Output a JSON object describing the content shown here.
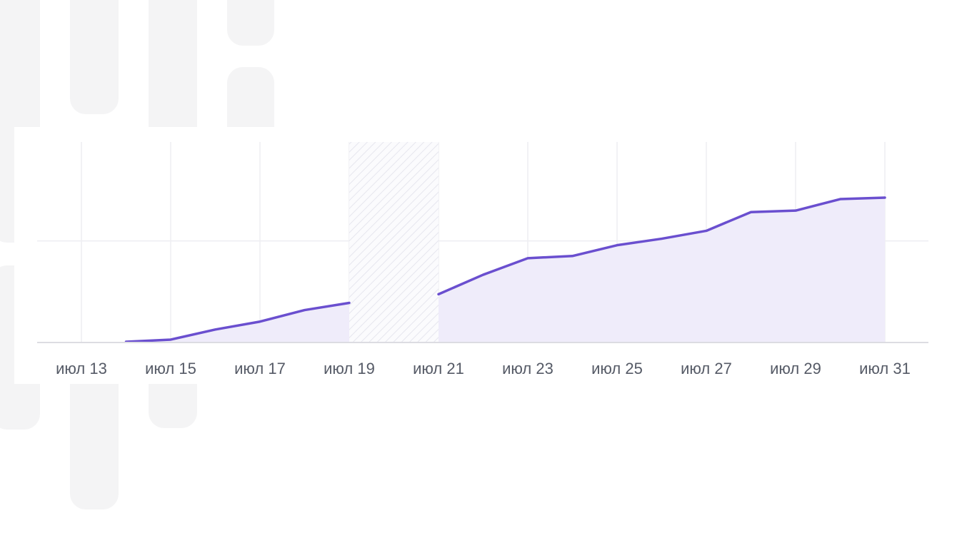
{
  "chart_data": {
    "type": "area",
    "title": "",
    "xlabel": "",
    "ylabel": "",
    "x_tick_labels": [
      "июл 13",
      "июл 15",
      "июл 17",
      "июл 19",
      "июл 21",
      "июл 23",
      "июл 25",
      "июл 27",
      "июл 29",
      "июл 31"
    ],
    "x_range": [
      "июл 13",
      "июл 31"
    ],
    "y_range": [
      0,
      1.0
    ],
    "grid": true,
    "highlighted_range": [
      "июл 19",
      "июл 21"
    ],
    "series": [
      {
        "color": "#6a4fcf",
        "fill_color": "#efecfa",
        "points": [
          {
            "x": "июл 14",
            "y": 0.0
          },
          {
            "x": "июл 15",
            "y": 0.015
          },
          {
            "x": "июл 16",
            "y": 0.085
          },
          {
            "x": "июл 17",
            "y": 0.14
          },
          {
            "x": "июл 18",
            "y": 0.22
          },
          {
            "x": "июл 19",
            "y": 0.27
          },
          {
            "x": "июл 21",
            "y": 0.33
          },
          {
            "x": "июл 22",
            "y": 0.465
          },
          {
            "x": "июл 23",
            "y": 0.58
          },
          {
            "x": "июл 24",
            "y": 0.595
          },
          {
            "x": "июл 25",
            "y": 0.67
          },
          {
            "x": "июл 26",
            "y": 0.715
          },
          {
            "x": "июл 27",
            "y": 0.77
          },
          {
            "x": "июл 28",
            "y": 0.9
          },
          {
            "x": "июл 29",
            "y": 0.91
          },
          {
            "x": "июл 30",
            "y": 0.99
          },
          {
            "x": "июл 31",
            "y": 1.0
          }
        ]
      }
    ]
  }
}
